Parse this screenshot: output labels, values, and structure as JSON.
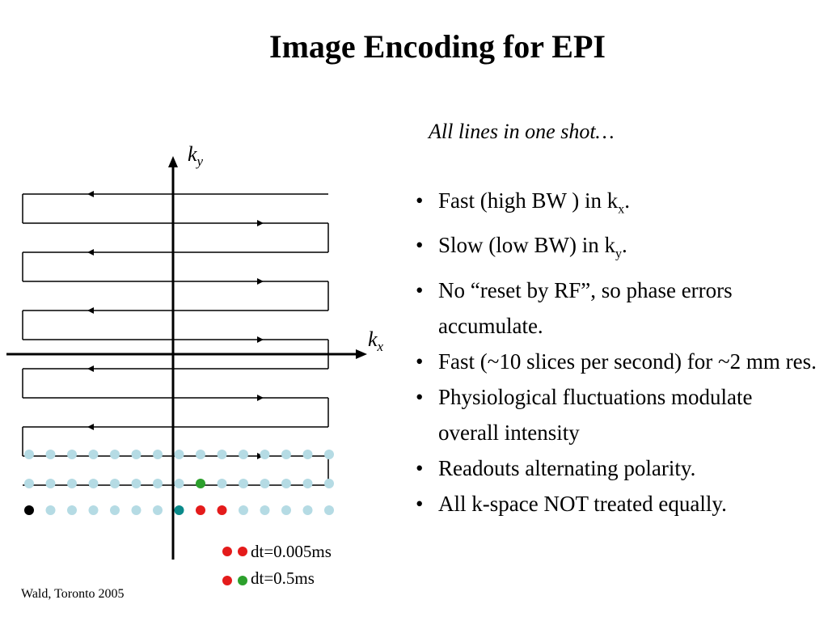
{
  "slide": {
    "title": "Image Encoding for EPI",
    "subtitle": "All lines in one shot…",
    "bullets": [
      {
        "text": "Fast (high BW ) in k",
        "sub": "x",
        "tail": "."
      },
      {
        "text": "Slow (low BW) in k",
        "sub": "y",
        "tail": "."
      },
      {
        "text": "No “reset by RF”, so phase errors accumulate.",
        "sub": "",
        "tail": ""
      },
      {
        "text": "Fast (~10 slices per second) for ~2 mm res.",
        "sub": "",
        "tail": ""
      },
      {
        "text": "Physiological fluctuations modulate overall intensity",
        "sub": "",
        "tail": ""
      },
      {
        "text": "Readouts alternating polarity.",
        "sub": "",
        "tail": ""
      },
      {
        "text": "All k-space NOT treated equally.",
        "sub": "",
        "tail": ""
      }
    ],
    "bullet_char": "•",
    "ky_label": {
      "main": "k",
      "sub": "y"
    },
    "kx_label": {
      "main": "k",
      "sub": "x"
    },
    "legend": {
      "fast": "dt=0.005ms",
      "slow": "dt=0.5ms"
    },
    "credit": "Wald, Toronto 2005"
  },
  "colors": {
    "sample_dot": "#b5dbe4",
    "first_sample": "#000000",
    "teal_sample": "#0a8a8a",
    "red_sample": "#e41b1b",
    "green_sample": "#2ca02c",
    "line": "#000000"
  },
  "diagram": {
    "readout_lines": 10,
    "samples_per_line": 15,
    "sample_rows": 3,
    "highlighted": [
      {
        "row": 3,
        "col": 1,
        "color": "first_sample"
      },
      {
        "row": 3,
        "col": 8,
        "color": "teal_sample"
      },
      {
        "row": 3,
        "col": 9,
        "color": "red_sample"
      },
      {
        "row": 3,
        "col": 10,
        "color": "red_sample"
      },
      {
        "row": 2,
        "col": 9,
        "color": "green_sample"
      }
    ]
  }
}
